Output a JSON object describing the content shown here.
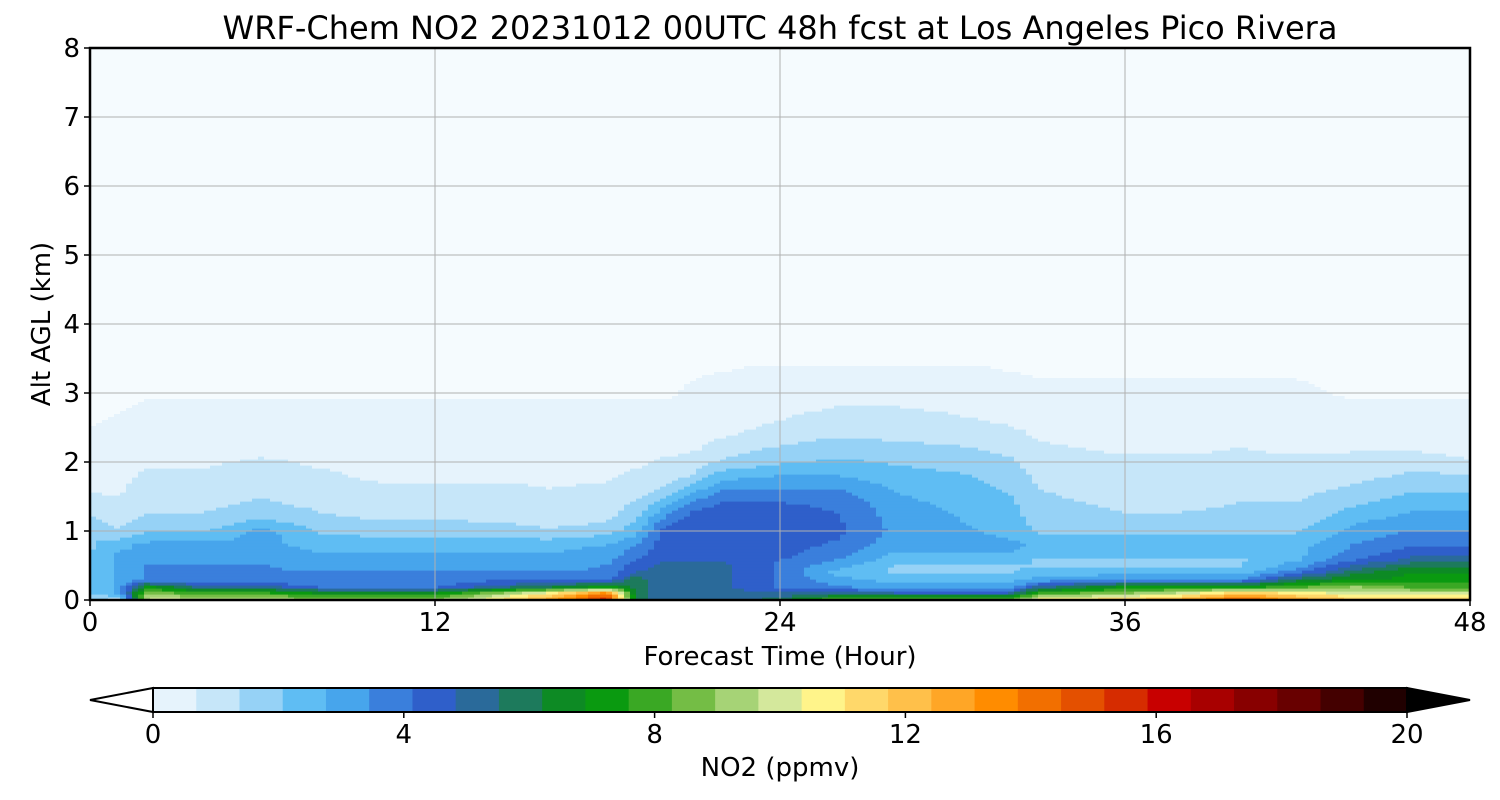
{
  "chart_data": {
    "type": "heatmap",
    "title": "WRF-Chem NO2  20231012 00UTC 48h fcst at Los Angeles Pico Rivera",
    "xlabel": "Forecast Time (Hour)",
    "ylabel": "Alt AGL (km)",
    "xlim": [
      0,
      48
    ],
    "ylim": [
      0,
      8
    ],
    "xticks": [
      "0",
      "12",
      "24",
      "36",
      "48"
    ],
    "yticks": [
      "0",
      "1",
      "2",
      "3",
      "4",
      "5",
      "6",
      "7",
      "8"
    ],
    "grid": true,
    "colorbar": {
      "label": "NO2  (ppmv)",
      "range": [
        0,
        20
      ],
      "ticks": [
        "0",
        "4",
        "8",
        "12",
        "16",
        "20"
      ],
      "extend": "both",
      "colors": [
        "#ffffff",
        "#e6f3fc",
        "#c6e6f9",
        "#96d2f6",
        "#5fbdf3",
        "#47a5ec",
        "#3a7fdc",
        "#2f5fca",
        "#2a6a9a",
        "#1d7a5c",
        "#0d8a24",
        "#0a9a10",
        "#3aa824",
        "#74bd45",
        "#a6d376",
        "#d4e89c",
        "#fff48a",
        "#ffd86a",
        "#ffc04a",
        "#ffa626",
        "#ff8c00",
        "#f26f00",
        "#e45000",
        "#d62c00",
        "#c80000",
        "#a80000",
        "#880000",
        "#680000",
        "#440000",
        "#200000",
        "#000000"
      ]
    },
    "time_hours": [
      0,
      1,
      2,
      4,
      6,
      8,
      10,
      12,
      14,
      16,
      18,
      19,
      20,
      21,
      22,
      24,
      26,
      28,
      30,
      32,
      33,
      36,
      38,
      40,
      42,
      44,
      46,
      47,
      48
    ],
    "altitude_km": [
      0,
      0.1,
      0.2,
      0.3,
      0.4,
      0.5,
      0.6,
      0.8,
      1.0,
      1.2,
      1.4,
      1.6,
      1.8,
      2.0,
      2.2,
      2.4,
      2.6,
      2.8,
      3.0,
      3.4
    ],
    "no2_ppmv": [
      [
        2,
        0.5,
        10,
        10,
        10,
        9,
        9,
        9,
        11,
        13,
        16,
        6,
        5,
        5,
        5,
        6,
        9,
        9,
        9,
        9,
        11,
        12,
        13,
        15,
        13,
        12,
        12,
        12,
        12
      ],
      [
        2,
        3,
        9,
        8,
        8,
        7,
        7,
        7,
        9,
        11,
        14,
        6,
        5,
        5,
        5,
        5,
        5,
        5,
        5,
        5,
        8,
        9,
        10,
        12,
        11,
        10,
        10,
        10,
        10
      ],
      [
        2,
        3,
        7,
        5,
        5,
        4,
        4,
        4,
        5,
        6,
        7,
        6,
        5,
        5,
        5,
        4,
        3.5,
        3,
        3,
        3,
        5,
        7,
        7,
        7,
        8,
        9,
        8,
        8,
        8
      ],
      [
        2,
        3,
        3.5,
        3.5,
        3.5,
        3.5,
        3.5,
        3.5,
        4,
        4,
        4,
        6,
        5,
        5,
        5,
        4,
        3,
        2.5,
        2.5,
        2.5,
        3,
        3.5,
        3.5,
        3.5,
        6,
        7,
        7,
        7,
        7
      ],
      [
        2,
        3,
        3.5,
        3.5,
        3.5,
        3.5,
        3.5,
        3.5,
        3.5,
        3.5,
        3.5,
        5,
        5,
        5,
        5,
        4,
        2.5,
        2,
        2,
        2,
        2.5,
        2.5,
        2.5,
        2.5,
        4,
        6,
        7,
        7,
        7
      ],
      [
        2,
        3,
        3.5,
        3.5,
        3.5,
        3.2,
        3.2,
        3.2,
        3.2,
        3.2,
        3.5,
        4.5,
        5,
        5,
        5,
        4,
        3,
        2,
        2,
        2,
        2,
        2,
        2,
        2,
        3.2,
        5,
        6,
        6,
        6
      ],
      [
        2,
        3,
        3.2,
        3.2,
        3.2,
        3,
        3,
        3,
        3,
        3,
        3.2,
        4,
        4.8,
        4.8,
        4.8,
        4.2,
        3.5,
        2.5,
        2.5,
        2.5,
        2,
        2,
        2,
        2,
        2.6,
        4,
        5,
        5,
        5
      ],
      [
        2,
        2.5,
        3,
        3,
        3,
        2.5,
        2.5,
        2.5,
        2.5,
        2.5,
        2.8,
        3.5,
        4.6,
        4.6,
        4.6,
        4.5,
        4,
        3,
        3,
        3,
        2.5,
        2.5,
        2.5,
        2.5,
        2.5,
        3.5,
        4,
        4,
        4
      ],
      [
        2,
        1.5,
        2,
        2,
        3,
        2,
        1.8,
        1.8,
        1.8,
        1.5,
        1.8,
        2.5,
        4.5,
        4.8,
        4.8,
        4.8,
        4.3,
        3.3,
        3,
        2.5,
        2,
        2,
        2,
        2,
        2,
        3,
        3.5,
        3.5,
        3.5
      ],
      [
        1.5,
        1,
        1.5,
        1.5,
        2,
        1.5,
        1.3,
        1.3,
        1.2,
        1,
        1.2,
        2,
        3.5,
        4.5,
        4.5,
        4.5,
        4.2,
        3.2,
        2.8,
        2.3,
        1.8,
        1.5,
        1.5,
        1.6,
        1.6,
        2.5,
        3,
        3,
        3
      ],
      [
        1,
        0.8,
        1.2,
        1.2,
        1.5,
        1.2,
        1,
        1,
        1,
        0.8,
        1,
        1.5,
        2.5,
        3.8,
        4.2,
        4.2,
        4,
        3,
        2.6,
        2.2,
        1.6,
        1.2,
        1.2,
        1.4,
        1.4,
        2,
        2.5,
        2.5,
        2.5
      ],
      [
        0.6,
        0.6,
        1,
        1,
        1.2,
        1,
        0.8,
        0.8,
        0.8,
        0.7,
        0.8,
        1,
        1.5,
        2.5,
        3.5,
        3.5,
        3.5,
        2.7,
        2.4,
        2,
        1.4,
        1,
        1,
        1.2,
        1.2,
        1.5,
        2,
        2,
        2
      ],
      [
        0.4,
        0.5,
        0.8,
        0.8,
        1,
        0.8,
        0.6,
        0.6,
        0.6,
        0.6,
        0.6,
        0.8,
        1,
        1.5,
        2.5,
        2.8,
        2.8,
        2.4,
        2.2,
        1.8,
        1.2,
        0.9,
        0.9,
        1,
        1,
        1.2,
        1.5,
        1.5,
        1.5
      ],
      [
        0.3,
        0.4,
        0.6,
        0.6,
        0.8,
        0.6,
        0.5,
        0.5,
        0.5,
        0.5,
        0.5,
        0.6,
        0.8,
        1,
        1.5,
        2,
        2.2,
        2,
        1.8,
        1.5,
        1,
        0.8,
        0.8,
        0.8,
        0.8,
        1,
        1.2,
        1,
        0.8
      ],
      [
        0.2,
        0.3,
        0.4,
        0.4,
        0.5,
        0.4,
        0.4,
        0.4,
        0.4,
        0.4,
        0.4,
        0.4,
        0.5,
        0.6,
        1,
        1.5,
        1.8,
        1.6,
        1.5,
        1.2,
        0.8,
        0.6,
        0.6,
        0.7,
        0.6,
        0.6,
        0.6,
        0.5,
        0.4
      ],
      [
        0.1,
        0.2,
        0.3,
        0.3,
        0.3,
        0.3,
        0.3,
        0.3,
        0.3,
        0.3,
        0.3,
        0.3,
        0.3,
        0.4,
        0.6,
        1,
        1.3,
        1.2,
        1.1,
        0.9,
        0.6,
        0.4,
        0.4,
        0.5,
        0.4,
        0.4,
        0.3,
        0.3,
        0.3
      ],
      [
        0,
        0.1,
        0.2,
        0.2,
        0.2,
        0.2,
        0.2,
        0.2,
        0.2,
        0.2,
        0.2,
        0.2,
        0.2,
        0.3,
        0.4,
        0.7,
        1,
        0.9,
        0.8,
        0.6,
        0.4,
        0.3,
        0.3,
        0.3,
        0.3,
        0.2,
        0.2,
        0.2,
        0.2
      ],
      [
        0,
        0,
        0.1,
        0.1,
        0.1,
        0.1,
        0.1,
        0.1,
        0.1,
        0.1,
        0.1,
        0.1,
        0.1,
        0.2,
        0.3,
        0.5,
        0.7,
        0.7,
        0.6,
        0.4,
        0.2,
        0.2,
        0.2,
        0.2,
        0.2,
        0.1,
        0.1,
        0.1,
        0.1
      ],
      [
        0,
        0,
        0,
        0,
        0,
        0,
        0,
        0,
        0,
        0,
        0,
        0,
        0,
        0.1,
        0.2,
        0.3,
        0.4,
        0.4,
        0.3,
        0.2,
        0.1,
        0.1,
        0.1,
        0.1,
        0.1,
        0,
        0,
        0,
        0
      ],
      [
        0,
        0,
        0,
        0,
        0,
        0,
        0,
        0,
        0,
        0,
        0,
        0,
        0,
        0,
        0,
        0.1,
        0.1,
        0.1,
        0.1,
        0,
        0,
        0,
        0,
        0,
        0,
        0,
        0,
        0,
        0
      ]
    ]
  }
}
